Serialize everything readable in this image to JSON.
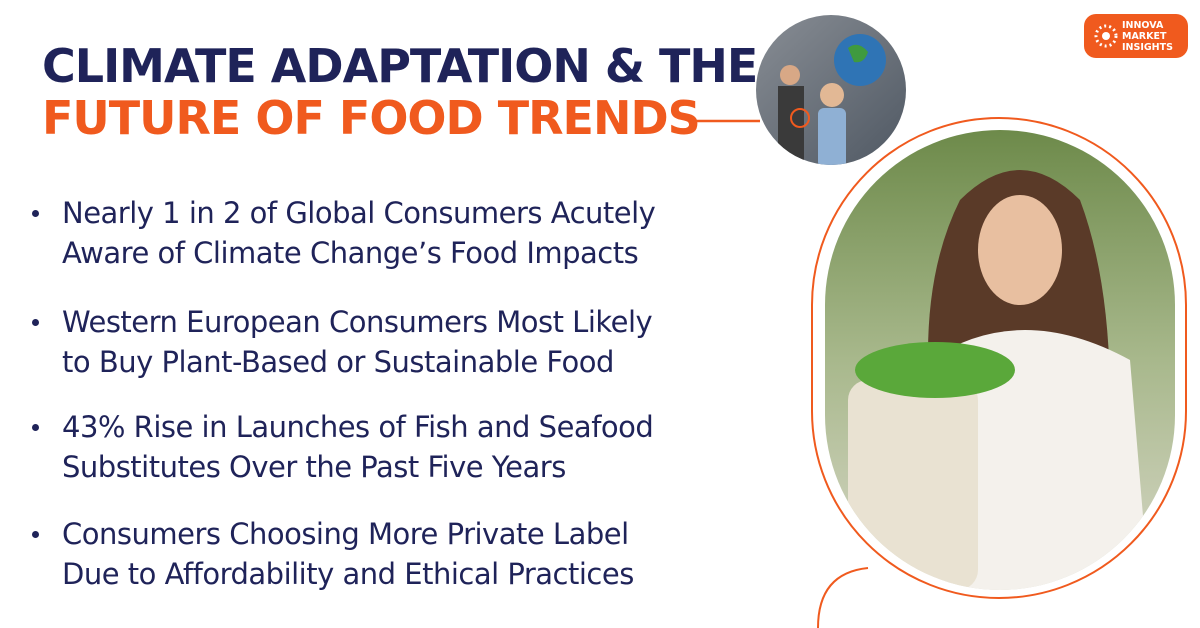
{
  "logo": {
    "lines": [
      "INNOVA",
      "MARKET",
      "INSIGHTS"
    ]
  },
  "title": {
    "line1": "CLIMATE ADAPTATION & THE",
    "line2": "FUTURE OF FOOD TRENDS"
  },
  "bullets": [
    [
      "Nearly 1 in 2 of Global Consumers Acutely",
      "Aware of Climate Change’s Food Impacts"
    ],
    [
      "Western European Consumers Most Likely",
      "to Buy Plant-Based or Sustainable Food"
    ],
    [
      "43% Rise in Launches of Fish and Seafood",
      "Substitutes Over the Past Five Years"
    ],
    [
      "Consumers Choosing More Private Label",
      "Due to Affordability and Ethical Practices"
    ]
  ]
}
